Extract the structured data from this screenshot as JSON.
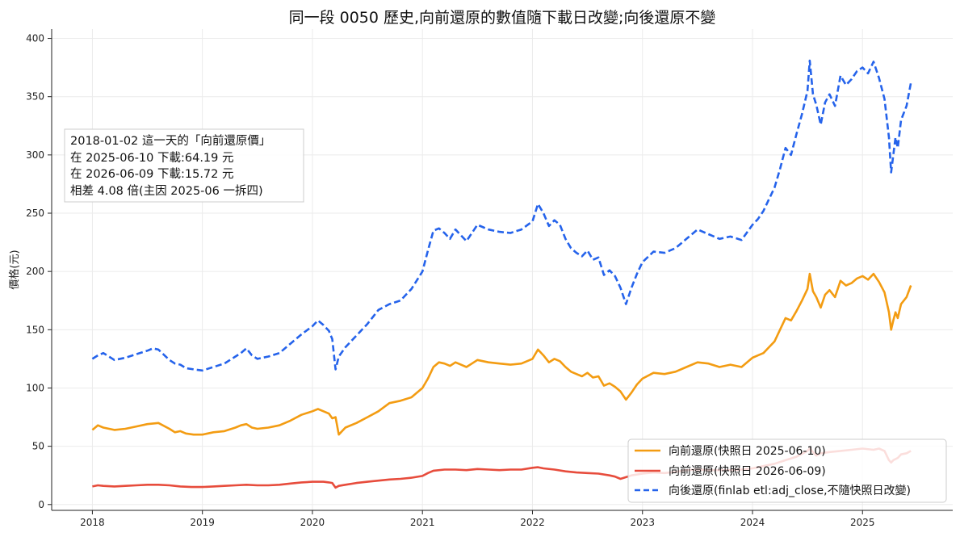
{
  "chart_data": {
    "type": "line",
    "title": "同一段 0050 歷史,向前還原的數值隨下載日改變;向後還原不變",
    "xlabel": "",
    "ylabel": "價格(元)",
    "xlim": [
      2017.63,
      2025.82
    ],
    "ylim": [
      -5,
      408
    ],
    "x_ticks": [
      2018,
      2019,
      2020,
      2021,
      2022,
      2023,
      2024,
      2025
    ],
    "x_tick_labels": [
      "2018",
      "2019",
      "2020",
      "2021",
      "2022",
      "2023",
      "2024",
      "2025"
    ],
    "y_ticks": [
      0,
      50,
      100,
      150,
      200,
      250,
      300,
      350,
      400
    ],
    "y_tick_labels": [
      "0",
      "50",
      "100",
      "150",
      "200",
      "250",
      "300",
      "350",
      "400"
    ],
    "grid": true,
    "legend_position": "bottom-right",
    "series": [
      {
        "name": "向前還原(快照日 2025-06-10)",
        "color": "#f39c12",
        "style": "solid",
        "x": [
          2018.0,
          2018.05,
          2018.1,
          2018.2,
          2018.3,
          2018.4,
          2018.5,
          2018.6,
          2018.7,
          2018.75,
          2018.8,
          2018.85,
          2018.92,
          2019.0,
          2019.1,
          2019.2,
          2019.3,
          2019.35,
          2019.4,
          2019.45,
          2019.5,
          2019.6,
          2019.7,
          2019.8,
          2019.9,
          2020.0,
          2020.05,
          2020.1,
          2020.15,
          2020.18,
          2020.21,
          2020.24,
          2020.3,
          2020.4,
          2020.5,
          2020.6,
          2020.7,
          2020.8,
          2020.9,
          2021.0,
          2021.05,
          2021.1,
          2021.15,
          2021.2,
          2021.25,
          2021.3,
          2021.35,
          2021.4,
          2021.45,
          2021.5,
          2021.6,
          2021.7,
          2021.8,
          2021.9,
          2022.0,
          2022.05,
          2022.1,
          2022.15,
          2022.2,
          2022.25,
          2022.3,
          2022.35,
          2022.4,
          2022.45,
          2022.5,
          2022.55,
          2022.6,
          2022.65,
          2022.7,
          2022.75,
          2022.8,
          2022.85,
          2022.9,
          2022.95,
          2023.0,
          2023.1,
          2023.2,
          2023.3,
          2023.4,
          2023.5,
          2023.6,
          2023.7,
          2023.8,
          2023.9,
          2024.0,
          2024.05,
          2024.1,
          2024.15,
          2024.2,
          2024.25,
          2024.3,
          2024.35,
          2024.4,
          2024.45,
          2024.5,
          2024.52,
          2024.55,
          2024.58,
          2024.62,
          2024.66,
          2024.7,
          2024.75,
          2024.8,
          2024.85,
          2024.9,
          2024.95,
          2025.0,
          2025.05,
          2025.1,
          2025.15,
          2025.2,
          2025.24,
          2025.26,
          2025.28,
          2025.3,
          2025.32,
          2025.35,
          2025.4,
          2025.44
        ],
        "values": [
          64,
          68,
          66,
          64,
          65,
          67,
          69,
          70,
          65,
          62,
          63,
          61,
          60,
          60,
          62,
          63,
          66,
          68,
          69,
          66,
          65,
          66,
          68,
          72,
          77,
          80,
          82,
          80,
          78,
          74,
          75,
          60,
          66,
          70,
          75,
          80,
          87,
          89,
          92,
          100,
          108,
          118,
          122,
          121,
          119,
          122,
          120,
          118,
          121,
          124,
          122,
          121,
          120,
          121,
          125,
          133,
          128,
          122,
          125,
          123,
          118,
          114,
          112,
          110,
          113,
          109,
          110,
          102,
          104,
          101,
          97,
          90,
          96,
          103,
          108,
          113,
          112,
          114,
          118,
          122,
          121,
          118,
          120,
          118,
          126,
          128,
          130,
          135,
          140,
          150,
          160,
          158,
          166,
          175,
          185,
          198,
          183,
          178,
          169,
          180,
          184,
          178,
          192,
          188,
          190,
          194,
          196,
          193,
          198,
          191,
          182,
          165,
          150,
          158,
          165,
          160,
          172,
          178,
          188
        ]
      },
      {
        "name": "向前還原(快照日 2026-06-09)",
        "color": "#e74c3c",
        "style": "solid",
        "x": [
          2018.0,
          2018.05,
          2018.1,
          2018.2,
          2018.3,
          2018.4,
          2018.5,
          2018.6,
          2018.7,
          2018.8,
          2018.9,
          2019.0,
          2019.1,
          2019.2,
          2019.3,
          2019.4,
          2019.5,
          2019.6,
          2019.7,
          2019.8,
          2019.9,
          2020.0,
          2020.1,
          2020.15,
          2020.18,
          2020.21,
          2020.24,
          2020.3,
          2020.4,
          2020.5,
          2020.6,
          2020.7,
          2020.8,
          2020.9,
          2021.0,
          2021.05,
          2021.1,
          2021.2,
          2021.3,
          2021.4,
          2021.5,
          2021.6,
          2021.7,
          2021.8,
          2021.9,
          2022.0,
          2022.05,
          2022.1,
          2022.2,
          2022.3,
          2022.4,
          2022.5,
          2022.6,
          2022.7,
          2022.75,
          2022.8,
          2022.85,
          2022.9,
          2023.0,
          2023.1,
          2023.2,
          2023.3,
          2023.4,
          2023.5,
          2023.6,
          2023.7,
          2023.8,
          2023.9,
          2024.0,
          2024.1,
          2024.2,
          2024.3,
          2024.4,
          2024.5,
          2024.52,
          2024.58,
          2024.62,
          2024.7,
          2024.8,
          2024.9,
          2025.0,
          2025.1,
          2025.15,
          2025.2,
          2025.24,
          2025.26,
          2025.28,
          2025.32,
          2025.35,
          2025.4,
          2025.44
        ],
        "values": [
          15.5,
          16.5,
          16,
          15.5,
          16,
          16.5,
          17,
          17,
          16.5,
          15.5,
          15,
          15,
          15.5,
          16,
          16.5,
          17,
          16.5,
          16.5,
          17,
          18,
          19,
          19.5,
          19.5,
          19,
          18.5,
          14.5,
          16,
          17,
          18.5,
          19.5,
          20.5,
          21.5,
          22,
          23,
          24.5,
          27,
          29,
          30,
          30,
          29.5,
          30.5,
          30,
          29.5,
          30,
          30,
          31.5,
          32,
          31,
          30,
          28.5,
          27.5,
          27,
          26.5,
          25,
          24,
          22,
          23.5,
          25,
          26.5,
          27.5,
          27,
          28,
          29.5,
          30,
          29.5,
          29.5,
          29.5,
          30,
          31,
          33,
          35,
          38,
          41,
          46,
          48,
          42,
          44,
          45,
          46,
          47,
          48,
          47,
          48,
          46,
          38,
          36,
          38,
          40,
          43,
          44,
          46
        ]
      },
      {
        "name": "向後還原(finlab etl:adj_close,不隨快照日改變)",
        "color": "#2563eb",
        "style": "dashed",
        "x": [
          2018.0,
          2018.05,
          2018.1,
          2018.2,
          2018.3,
          2018.4,
          2018.5,
          2018.55,
          2018.6,
          2018.7,
          2018.75,
          2018.8,
          2018.85,
          2018.92,
          2019.0,
          2019.1,
          2019.2,
          2019.3,
          2019.35,
          2019.4,
          2019.45,
          2019.5,
          2019.6,
          2019.7,
          2019.8,
          2019.9,
          2020.0,
          2020.05,
          2020.1,
          2020.15,
          2020.18,
          2020.21,
          2020.24,
          2020.3,
          2020.4,
          2020.5,
          2020.6,
          2020.7,
          2020.8,
          2020.9,
          2021.0,
          2021.05,
          2021.1,
          2021.15,
          2021.2,
          2021.25,
          2021.3,
          2021.35,
          2021.4,
          2021.45,
          2021.5,
          2021.6,
          2021.7,
          2021.8,
          2021.9,
          2022.0,
          2022.05,
          2022.1,
          2022.15,
          2022.2,
          2022.25,
          2022.3,
          2022.35,
          2022.4,
          2022.45,
          2022.5,
          2022.55,
          2022.6,
          2022.65,
          2022.7,
          2022.75,
          2022.8,
          2022.85,
          2022.9,
          2022.95,
          2023.0,
          2023.1,
          2023.2,
          2023.3,
          2023.4,
          2023.5,
          2023.6,
          2023.7,
          2023.8,
          2023.9,
          2024.0,
          2024.05,
          2024.1,
          2024.15,
          2024.2,
          2024.25,
          2024.3,
          2024.35,
          2024.4,
          2024.45,
          2024.5,
          2024.52,
          2024.55,
          2024.58,
          2024.62,
          2024.66,
          2024.7,
          2024.75,
          2024.8,
          2024.85,
          2024.9,
          2024.95,
          2025.0,
          2025.05,
          2025.1,
          2025.15,
          2025.2,
          2025.24,
          2025.26,
          2025.28,
          2025.3,
          2025.32,
          2025.35,
          2025.4,
          2025.44
        ],
        "values": [
          125,
          128,
          130,
          124,
          126,
          129,
          132,
          134,
          133,
          124,
          121,
          120,
          117,
          116,
          115,
          118,
          121,
          127,
          130,
          134,
          128,
          125,
          127,
          130,
          138,
          146,
          153,
          158,
          154,
          149,
          142,
          116,
          127,
          135,
          145,
          155,
          167,
          172,
          175,
          185,
          200,
          218,
          235,
          237,
          233,
          228,
          236,
          231,
          226,
          233,
          240,
          236,
          234,
          233,
          236,
          243,
          258,
          250,
          239,
          244,
          240,
          228,
          220,
          216,
          213,
          218,
          210,
          212,
          197,
          201,
          196,
          186,
          172,
          186,
          198,
          208,
          217,
          216,
          220,
          228,
          236,
          232,
          228,
          230,
          227,
          240,
          245,
          252,
          262,
          272,
          288,
          306,
          300,
          318,
          335,
          355,
          381,
          352,
          343,
          326,
          345,
          352,
          342,
          368,
          360,
          365,
          372,
          375,
          370,
          380,
          366,
          348,
          315,
          285,
          300,
          315,
          306,
          330,
          342,
          362
        ]
      }
    ],
    "annotation": {
      "lines": [
        "2018-01-02 這一天的「向前還原價」",
        "在 2025-06-10 下載:64.19 元",
        "在 2026-06-09 下載:15.72 元",
        "相差 4.08 倍(主因 2025-06 一拆四)"
      ]
    }
  }
}
